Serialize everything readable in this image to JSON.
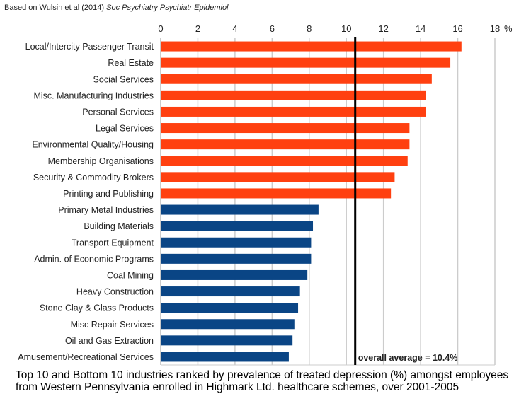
{
  "source": {
    "prefix": "Based on Wulsin et al (2014) ",
    "journal": "Soc Psychiatry Psychiatr Epidemiol"
  },
  "caption": "Top 10 and Bottom 10 industries ranked by prevalence of treated depression (%) amongst employees from Western Pennsylvania enrolled in Highmark Ltd. healthcare schemes, over 2001-2005",
  "chart_data": {
    "type": "bar",
    "orientation": "horizontal",
    "categories": [
      "Local/Intercity Passenger Transit",
      "Real Estate",
      "Social Services",
      "Misc. Manufacturing Industries",
      "Personal Services",
      "Legal Services",
      "Environmental Quality/Housing",
      "Membership Organisations",
      "Security & Commodity Brokers",
      "Printing and Publishing",
      "Primary Metal Industries",
      "Building Materials",
      "Transport Equipment",
      "Admin. of Economic Programs",
      "Coal Mining",
      "Heavy Construction",
      "Stone Clay & Glass Products",
      "Misc Repair Services",
      "Oil and Gas Extraction",
      "Amusement/Recreational Services"
    ],
    "values": [
      16.2,
      15.6,
      14.6,
      14.3,
      14.3,
      13.4,
      13.4,
      13.3,
      12.6,
      12.4,
      8.5,
      8.2,
      8.1,
      8.1,
      7.9,
      7.5,
      7.4,
      7.2,
      7.1,
      6.9
    ],
    "groups": [
      "top",
      "top",
      "top",
      "top",
      "top",
      "top",
      "top",
      "top",
      "top",
      "top",
      "bottom",
      "bottom",
      "bottom",
      "bottom",
      "bottom",
      "bottom",
      "bottom",
      "bottom",
      "bottom",
      "bottom"
    ],
    "colors": {
      "top": "#ff4010",
      "bottom": "#0a4585",
      "average": "#000000",
      "grid": "#cccccc"
    },
    "xlim": [
      0,
      18
    ],
    "xticks": [
      "0",
      "2",
      "4",
      "6",
      "8",
      "10",
      "12",
      "14",
      "16",
      "18"
    ],
    "xunit": "%",
    "xaxis_position": "top",
    "grid": true,
    "reference_line": {
      "value": 10.4,
      "label": "overall average = 10.4%"
    }
  }
}
